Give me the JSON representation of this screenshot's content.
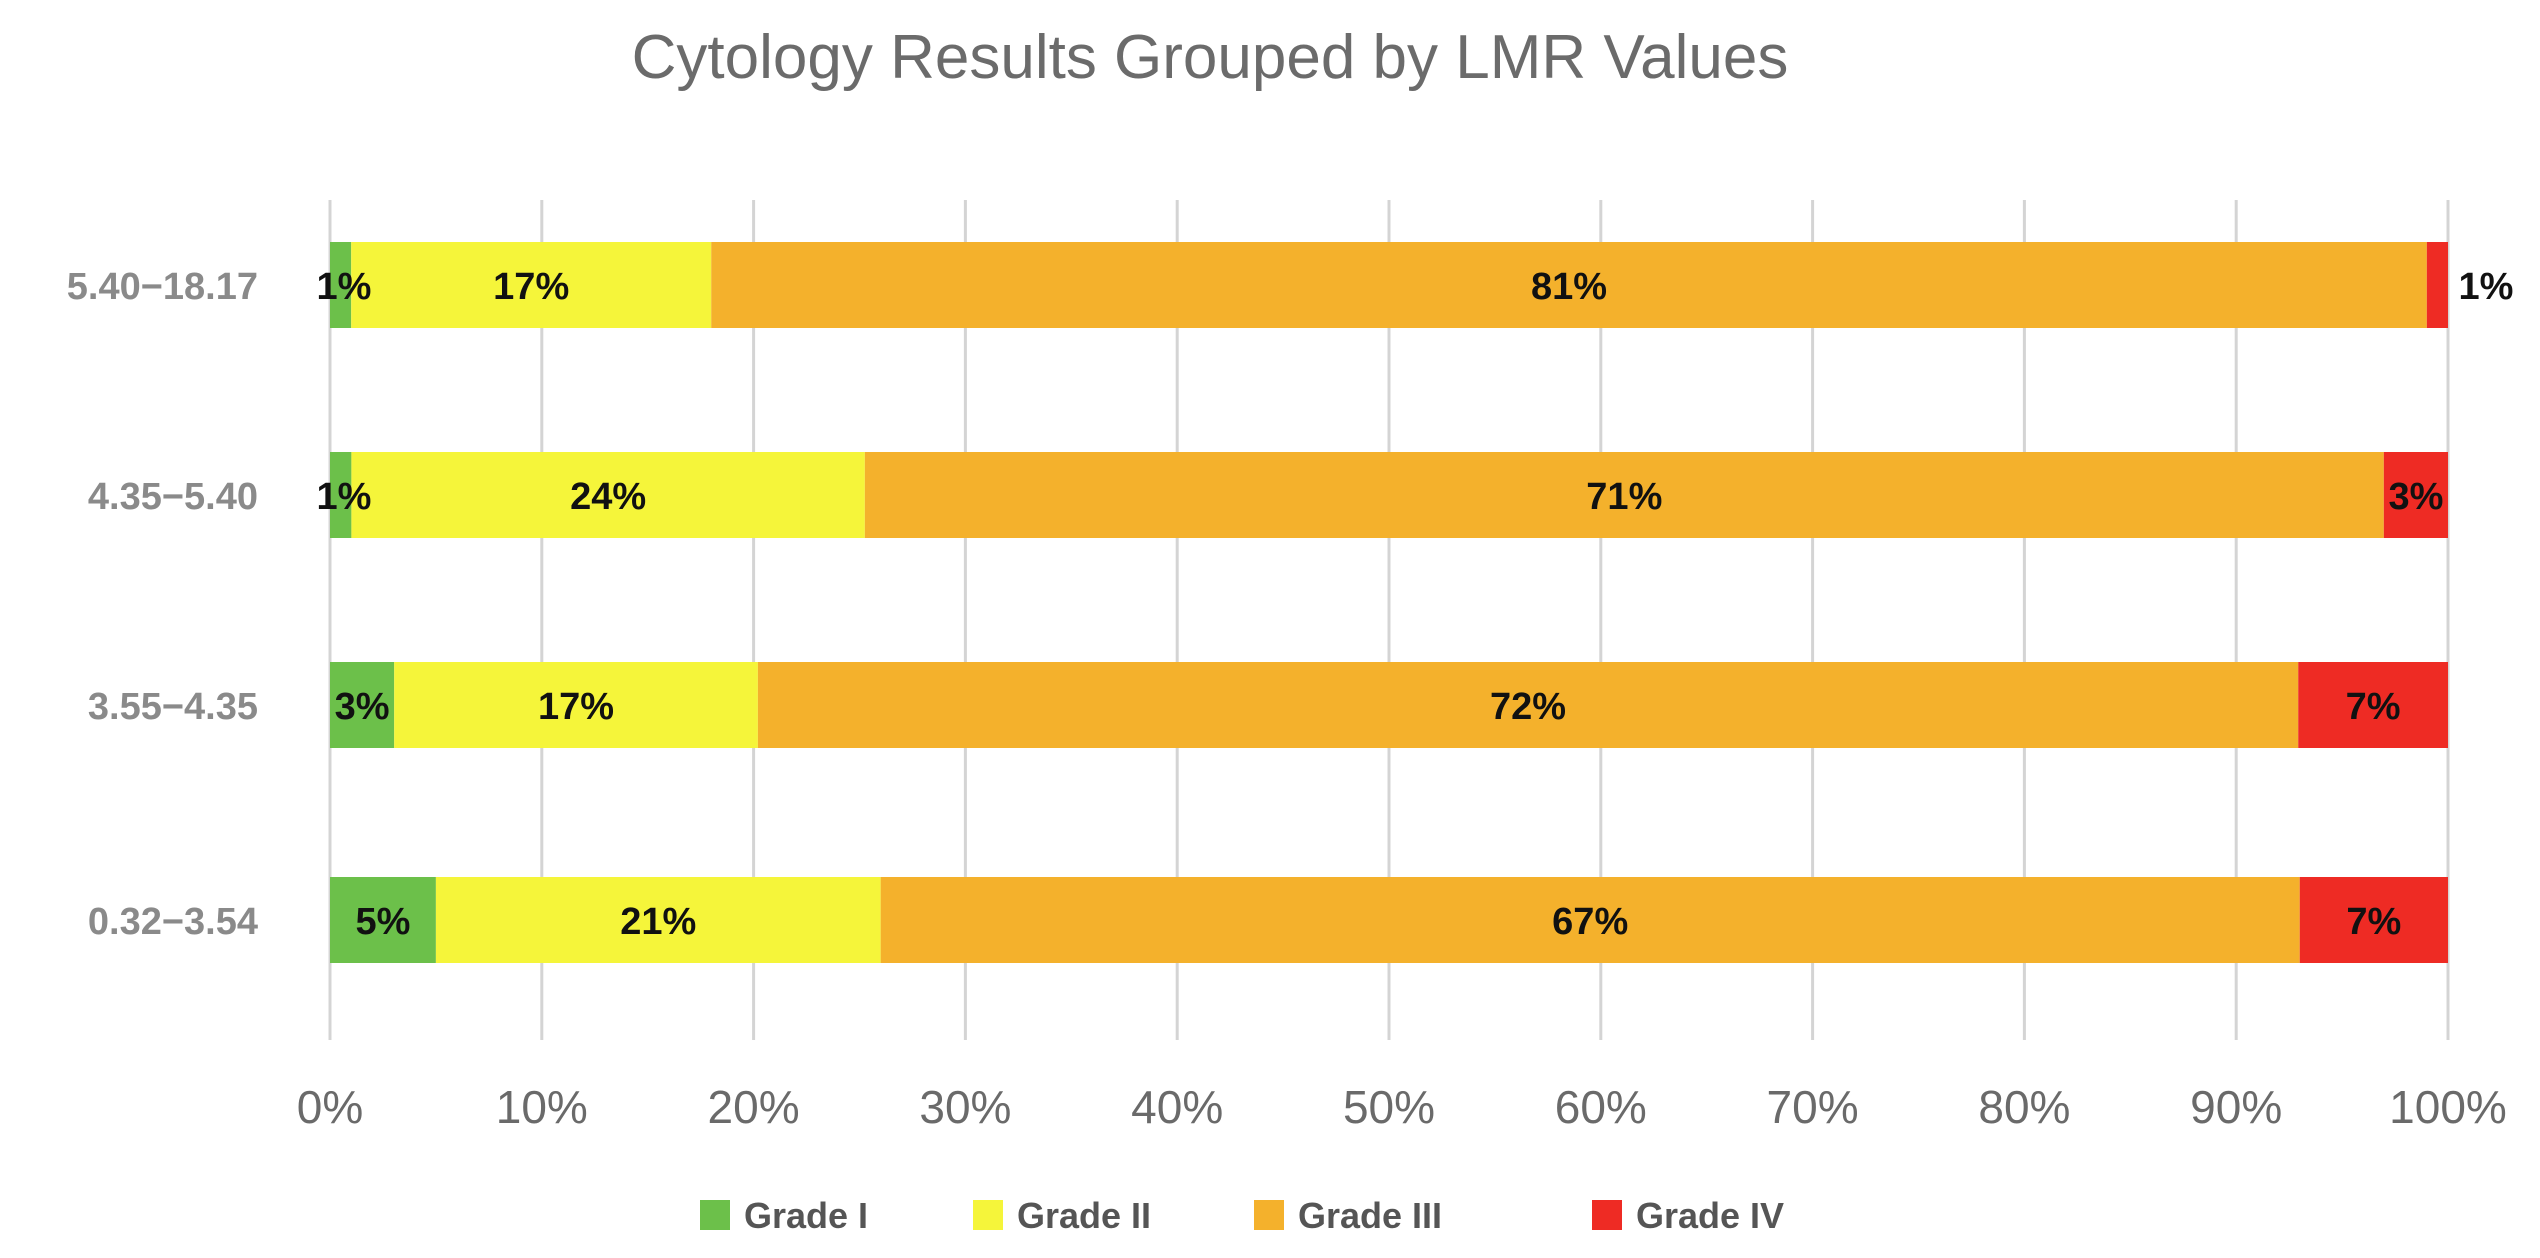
{
  "chart_data": {
    "type": "bar",
    "orientation": "horizontal",
    "stacked": true,
    "title": "Cytology Results Grouped by LMR Values",
    "xlabel": "",
    "ylabel": "",
    "xlim": [
      0,
      100
    ],
    "x_ticks": [
      "0%",
      "10%",
      "20%",
      "30%",
      "40%",
      "50%",
      "60%",
      "70%",
      "80%",
      "90%",
      "100%"
    ],
    "grid": true,
    "legend_position": "bottom",
    "categories": [
      "5.40−18.17",
      "4.35−5.40",
      "3.55−4.35",
      "0.32−3.54"
    ],
    "series": [
      {
        "name": "Grade I",
        "color": "#6cc04a",
        "values": [
          1,
          1,
          3,
          5
        ],
        "labels": [
          "1%",
          "1%",
          "3%",
          "5%"
        ]
      },
      {
        "name": "Grade II",
        "color": "#f5f53a",
        "values": [
          17,
          24,
          17,
          21
        ],
        "labels": [
          "17%",
          "24%",
          "17%",
          "21%"
        ]
      },
      {
        "name": "Grade III",
        "color": "#f4b12c",
        "values": [
          81,
          71,
          72,
          67
        ],
        "labels": [
          "81%",
          "71%",
          "72%",
          "67%"
        ]
      },
      {
        "name": "Grade IV",
        "color": "#ee2b24",
        "values": [
          1,
          3,
          7,
          7
        ],
        "labels": [
          "1%",
          "3%",
          "7%",
          "7%"
        ]
      }
    ]
  }
}
